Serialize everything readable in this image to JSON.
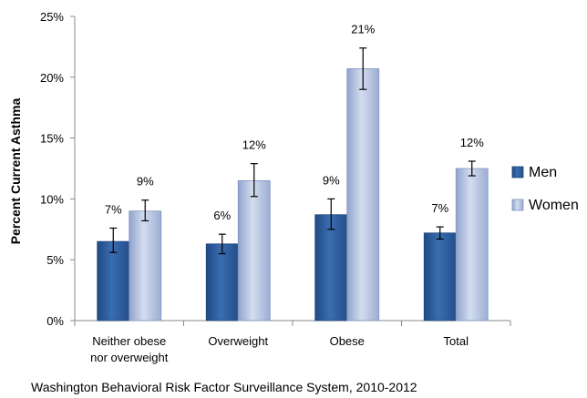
{
  "chart_data": {
    "type": "bar",
    "ylabel": "Percent Current Asthma",
    "ylim": [
      0,
      25
    ],
    "yticks": [
      "0%",
      "5%",
      "10%",
      "15%",
      "20%",
      "25%"
    ],
    "ytick_values": [
      0,
      5,
      10,
      15,
      20,
      25
    ],
    "categories": [
      [
        "Neither obese",
        "nor overweight"
      ],
      [
        "Overweight"
      ],
      [
        "Obese"
      ],
      [
        "Total"
      ]
    ],
    "series": [
      {
        "name": "Men",
        "color": "#2e5e9e",
        "values": [
          6.5,
          6.3,
          8.7,
          7.2
        ],
        "error_low": [
          5.6,
          5.5,
          7.5,
          6.7
        ],
        "error_high": [
          7.6,
          7.1,
          10.0,
          7.7
        ],
        "labels": [
          "7%",
          "6%",
          "9%",
          "7%"
        ]
      },
      {
        "name": "Women",
        "color": "#a9b9da",
        "values": [
          9.0,
          11.5,
          20.7,
          12.5
        ],
        "error_low": [
          8.2,
          10.2,
          19.0,
          11.9
        ],
        "error_high": [
          9.9,
          12.9,
          22.4,
          13.1
        ],
        "labels": [
          "9%",
          "12%",
          "21%",
          "12%"
        ]
      }
    ],
    "legend_position": "right",
    "grid": false,
    "source": "Washington Behavioral Risk Factor Surveillance System, 2010-2012"
  }
}
